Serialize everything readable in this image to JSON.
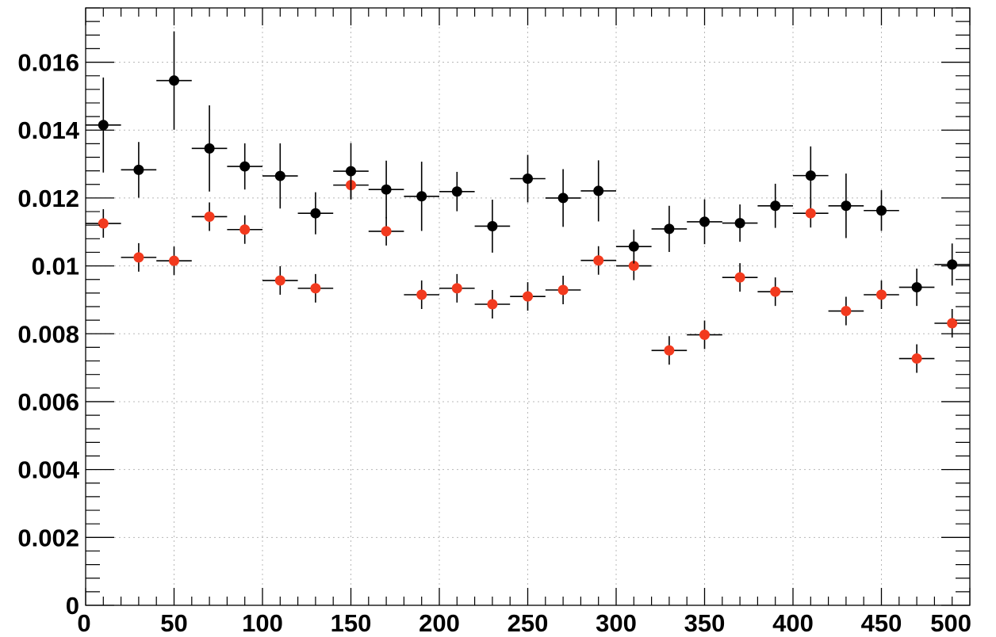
{
  "chart_data": {
    "type": "scatter",
    "title": "",
    "xlabel": "",
    "ylabel": "",
    "xlim": [
      0,
      500
    ],
    "ylim": [
      0,
      0.0176
    ],
    "grid": true,
    "grid_style": "dotted",
    "x_ticks": [
      0,
      50,
      100,
      150,
      200,
      250,
      300,
      350,
      400,
      450,
      500
    ],
    "x_tick_labels": [
      "0",
      "50",
      "100",
      "150",
      "200",
      "250",
      "300",
      "350",
      "400",
      "450",
      "500"
    ],
    "y_ticks": [
      0,
      0.002,
      0.004,
      0.006,
      0.008,
      0.01,
      0.012,
      0.014,
      0.016
    ],
    "y_tick_labels": [
      "0",
      "0.002",
      "0.004",
      "0.006",
      "0.008",
      "0.01",
      "0.012",
      "0.014",
      "0.016"
    ],
    "bin_half_width": 10,
    "series": [
      {
        "color": "#000000",
        "x": [
          10,
          30,
          50,
          70,
          90,
          110,
          130,
          150,
          170,
          190,
          210,
          230,
          250,
          270,
          290,
          310,
          330,
          350,
          370,
          390,
          410,
          430,
          450,
          470,
          490
        ],
        "y": [
          0.01415,
          0.01283,
          0.01546,
          0.01346,
          0.01293,
          0.01265,
          0.01155,
          0.01279,
          0.01225,
          0.01205,
          0.01219,
          0.01117,
          0.01257,
          0.012,
          0.01221,
          0.01057,
          0.01109,
          0.0113,
          0.01126,
          0.01177,
          0.01266,
          0.01177,
          0.01163,
          0.00937,
          0.01004
        ],
        "yerr": [
          0.0014,
          0.00082,
          0.00145,
          0.00127,
          0.00068,
          0.00096,
          0.00062,
          0.00083,
          0.00085,
          0.00102,
          0.00058,
          0.00078,
          0.0007,
          0.00085,
          0.0009,
          0.0005,
          0.00068,
          0.00066,
          0.00055,
          0.00065,
          0.00086,
          0.00095,
          0.0006,
          0.00055,
          0.00062
        ]
      },
      {
        "color": "#f23a1e",
        "x": [
          10,
          30,
          50,
          70,
          90,
          110,
          130,
          150,
          170,
          190,
          210,
          230,
          250,
          270,
          290,
          310,
          330,
          350,
          370,
          390,
          410,
          430,
          450,
          470,
          490
        ],
        "y": [
          0.01125,
          0.01025,
          0.01015,
          0.01145,
          0.01107,
          0.00957,
          0.00934,
          0.01238,
          0.01102,
          0.00915,
          0.00934,
          0.00887,
          0.0091,
          0.00929,
          0.01016,
          0.01,
          0.00751,
          0.00797,
          0.00966,
          0.00924,
          0.01155,
          0.00867,
          0.00915,
          0.00727,
          0.00831
        ]
      }
    ]
  }
}
